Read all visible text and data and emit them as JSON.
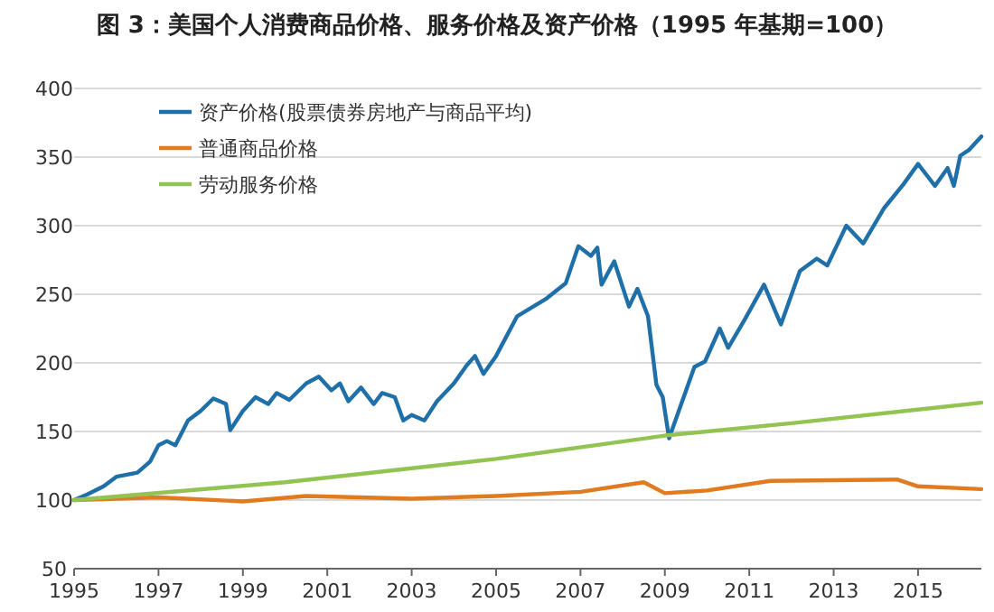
{
  "chart_data": {
    "type": "line",
    "title": "图 3：美国个人消费商品价格、服务价格及资产价格（1995 年基期=100）",
    "xlim": [
      1995,
      2016.5
    ],
    "xticks": [
      1995,
      1997,
      1999,
      2001,
      2003,
      2005,
      2007,
      2009,
      2011,
      2013,
      2015
    ],
    "ylim": [
      50,
      400
    ],
    "yticks": [
      50,
      100,
      150,
      200,
      250,
      300,
      350,
      400
    ],
    "grid": "y",
    "legend": "top left",
    "series": [
      {
        "name": "资产价格(股票债券房地产与商品平均)",
        "color": "#1f6fa8",
        "x": [
          1995,
          1995.3,
          1995.7,
          1996,
          1996.5,
          1996.8,
          1997,
          1997.2,
          1997.4,
          1997.7,
          1998,
          1998.3,
          1998.6,
          1998.7,
          1999,
          1999.3,
          1999.6,
          1999.8,
          2000.1,
          2000.5,
          2000.8,
          2001.1,
          2001.3,
          2001.5,
          2001.8,
          2002.1,
          2002.3,
          2002.6,
          2002.8,
          2003,
          2003.3,
          2003.6,
          2004,
          2004.3,
          2004.5,
          2004.7,
          2005,
          2005.5,
          2006.2,
          2006.65,
          2006.95,
          2007.25,
          2007.4,
          2007.5,
          2007.8,
          2008.15,
          2008.35,
          2008.6,
          2008.8,
          2008.95,
          2009.1,
          2009.4,
          2009.7,
          2009.95,
          2010.3,
          2010.5,
          2010.9,
          2011.35,
          2011.75,
          2012.2,
          2012.6,
          2012.85,
          2013.3,
          2013.7,
          2014.2,
          2014.65,
          2015,
          2015.2,
          2015.4,
          2015.7,
          2015.85,
          2016,
          2016.2,
          2016.5
        ],
        "values": [
          100,
          104,
          110,
          117,
          120,
          128,
          140,
          143,
          140,
          158,
          165,
          174,
          170,
          151,
          165,
          175,
          170,
          178,
          173,
          185,
          190,
          180,
          185,
          172,
          182,
          170,
          178,
          175,
          158,
          162,
          158,
          172,
          185,
          198,
          205,
          192,
          205,
          234,
          247,
          258,
          285,
          278,
          284,
          257,
          274,
          241,
          254,
          234,
          184,
          175,
          145,
          171,
          197,
          201,
          225,
          211,
          232,
          257,
          228,
          267,
          276,
          271,
          300,
          287,
          313,
          330,
          345,
          337,
          329,
          342,
          329,
          351,
          355,
          365
        ]
      },
      {
        "name": "普通商品价格",
        "color": "#e07b20",
        "x": [
          1995,
          1997,
          1999,
          2000.5,
          2003,
          2005,
          2007,
          2008.5,
          2009,
          2010,
          2011.5,
          2014.5,
          2015,
          2016.5
        ],
        "values": [
          100,
          102,
          99,
          103,
          101,
          103,
          106,
          113,
          105,
          107,
          114,
          115,
          110,
          108
        ]
      },
      {
        "name": "劳动服务价格",
        "color": "#92c353",
        "x": [
          1995,
          2000,
          2005,
          2009,
          2012,
          2016.5
        ],
        "values": [
          100,
          113,
          130,
          147,
          156,
          171
        ]
      }
    ]
  }
}
